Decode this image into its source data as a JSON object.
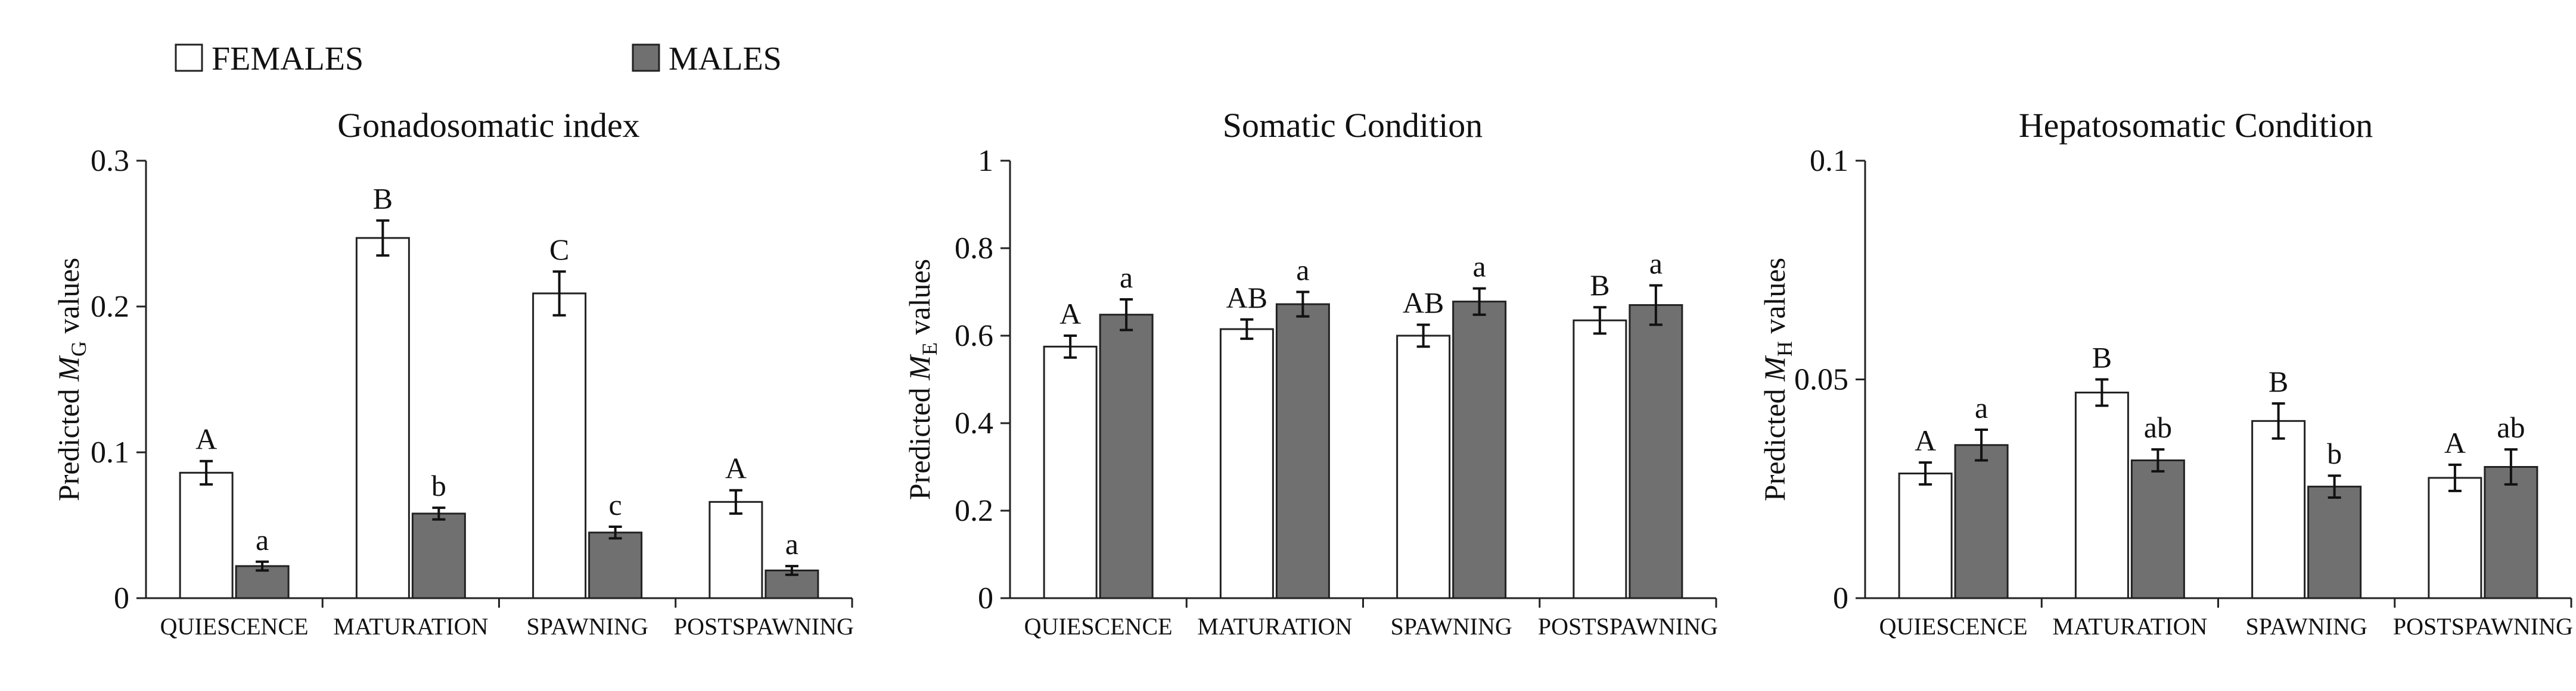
{
  "legend": {
    "females_label": "FEMALES",
    "males_label": "MALES",
    "females_color": "#ffffff",
    "males_color": "#707070"
  },
  "chart_data": [
    {
      "type": "bar",
      "title": "Gonadosomatic index",
      "ylabel_text": "Predicted",
      "ylabel_symbol": "M",
      "ylabel_sub": "G",
      "ylabel_tail": "values",
      "ylim": [
        0,
        0.3
      ],
      "yticks": [
        "0",
        "0.1",
        "0.2",
        "0.3"
      ],
      "categories": [
        "QUIESCENCE",
        "MATURATION",
        "SPAWNING",
        "POSTSPAWNING"
      ],
      "series": [
        {
          "name": "FEMALES",
          "values": [
            0.086,
            0.247,
            0.209,
            0.066
          ],
          "errors": [
            0.008,
            0.012,
            0.015,
            0.008
          ],
          "labels": [
            "A",
            "B",
            "C",
            "A"
          ]
        },
        {
          "name": "MALES",
          "values": [
            0.022,
            0.058,
            0.045,
            0.019
          ],
          "errors": [
            0.003,
            0.004,
            0.004,
            0.003
          ],
          "labels": [
            "a",
            "b",
            "c",
            "a"
          ]
        }
      ]
    },
    {
      "type": "bar",
      "title": "Somatic Condition",
      "ylabel_text": "Predicted",
      "ylabel_symbol": "M",
      "ylabel_sub": "E",
      "ylabel_tail": "values",
      "ylim": [
        0,
        1
      ],
      "yticks": [
        "0",
        "0.2",
        "0.4",
        "0.6",
        "0.8",
        "1"
      ],
      "categories": [
        "QUIESCENCE",
        "MATURATION",
        "SPAWNING",
        "POSTSPAWNING"
      ],
      "series": [
        {
          "name": "FEMALES",
          "values": [
            0.575,
            0.615,
            0.6,
            0.635
          ],
          "errors": [
            0.025,
            0.022,
            0.025,
            0.03
          ],
          "labels": [
            "A",
            "AB",
            "AB",
            "B"
          ]
        },
        {
          "name": "MALES",
          "values": [
            0.648,
            0.672,
            0.678,
            0.67
          ],
          "errors": [
            0.035,
            0.028,
            0.03,
            0.045
          ],
          "labels": [
            "a",
            "a",
            "a",
            "a"
          ]
        }
      ]
    },
    {
      "type": "bar",
      "title": "Hepatosomatic Condition",
      "ylabel_text": "Predicted",
      "ylabel_symbol": "M",
      "ylabel_sub": "H",
      "ylabel_tail": "values",
      "ylim": [
        0,
        0.1
      ],
      "yticks": [
        "0",
        "0.05",
        "0.1"
      ],
      "categories": [
        "QUIESCENCE",
        "MATURATION",
        "SPAWNING",
        "POSTSPAWNING"
      ],
      "series": [
        {
          "name": "FEMALES",
          "values": [
            0.0285,
            0.047,
            0.0405,
            0.0275
          ],
          "errors": [
            0.0025,
            0.003,
            0.004,
            0.003
          ],
          "labels": [
            "A",
            "B",
            "B",
            "A"
          ]
        },
        {
          "name": "MALES",
          "values": [
            0.035,
            0.0315,
            0.0255,
            0.03
          ],
          "errors": [
            0.0035,
            0.0025,
            0.0025,
            0.004
          ],
          "labels": [
            "a",
            "ab",
            "b",
            "ab"
          ]
        }
      ]
    }
  ]
}
